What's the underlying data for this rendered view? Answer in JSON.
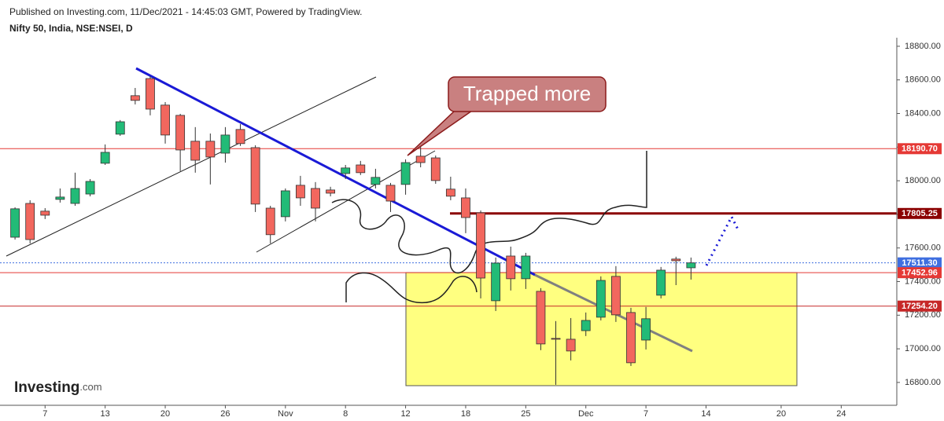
{
  "header": {
    "published": "Published on Investing.com, 11/Dec/2021 - 14:45:03 GMT, Powered by TradingView.",
    "symbol": "Nifty 50, India, NSE:NSEI, D"
  },
  "logo": {
    "name": "Investing",
    "suffix": ".com"
  },
  "chart_data": {
    "type": "candlestick",
    "up_color": "#22bb77",
    "down_color": "#f2675e",
    "xlim": [
      -1,
      58.7
    ],
    "ylim": [
      16664,
      18851
    ],
    "xticks": [
      {
        "value": 2,
        "label": "7"
      },
      {
        "value": 6,
        "label": "13"
      },
      {
        "value": 10,
        "label": "20"
      },
      {
        "value": 14,
        "label": "26"
      },
      {
        "value": 18,
        "label": "Nov"
      },
      {
        "value": 22,
        "label": "8"
      },
      {
        "value": 26,
        "label": "12"
      },
      {
        "value": 30,
        "label": "18"
      },
      {
        "value": 34,
        "label": "25"
      },
      {
        "value": 38,
        "label": "Dec"
      },
      {
        "value": 42,
        "label": "7"
      },
      {
        "value": 46,
        "label": "14"
      },
      {
        "value": 51,
        "label": "20"
      },
      {
        "value": 55,
        "label": "24"
      }
    ],
    "yticks": [
      {
        "value": 16800,
        "label": "16800.00"
      },
      {
        "value": 17000,
        "label": "17000.00"
      },
      {
        "value": 17200,
        "label": "17200.00"
      },
      {
        "value": 17400,
        "label": "17400.00"
      },
      {
        "value": 17600,
        "label": "17600.00"
      },
      {
        "value": 17800,
        "label": "17800.00"
      },
      {
        "value": 18000,
        "label": "18000.00"
      },
      {
        "value": 18200,
        "label": "18200.00"
      },
      {
        "value": 18400,
        "label": "18400.00"
      },
      {
        "value": 18600,
        "label": "18600.00"
      },
      {
        "value": 18800,
        "label": "18800.00"
      }
    ],
    "open": [
      17664,
      17865,
      17819,
      17889,
      17865,
      17921,
      18104,
      18277,
      18506,
      18608,
      18450,
      18389,
      18235,
      18235,
      18164,
      18305,
      18197,
      17837,
      17786,
      17973,
      17954,
      17945,
      18043,
      18094,
      17978,
      17973,
      17978,
      18146,
      18136,
      17950,
      17898,
      17809,
      17286,
      17552,
      17417,
      17342,
      17062,
      17057,
      17108,
      17188,
      17431,
      17216,
      17052,
      17319,
      17534,
      17482
    ],
    "high": [
      17842,
      17884,
      17837,
      17954,
      18048,
      18010,
      18216,
      18361,
      18552,
      18622,
      18468,
      18398,
      18319,
      18281,
      18319,
      18337,
      18211,
      17851,
      17954,
      18029,
      17992,
      17964,
      18094,
      18118,
      18071,
      17987,
      18127,
      18211,
      18150,
      18024,
      17954,
      17823,
      17543,
      17608,
      17571,
      17361,
      17165,
      17183,
      17216,
      17431,
      17492,
      17244,
      17249,
      17487,
      17548,
      17543
    ],
    "low": [
      17650,
      17627,
      17772,
      17870,
      17851,
      17907,
      18094,
      18267,
      18454,
      18389,
      18221,
      18057,
      18048,
      17978,
      18108,
      18207,
      17814,
      17627,
      17758,
      17851,
      17758,
      17907,
      18010,
      18034,
      17954,
      17814,
      17917,
      18080,
      17982,
      17884,
      17688,
      17300,
      17225,
      17347,
      17356,
      16992,
      16786,
      16931,
      17076,
      17169,
      17160,
      16898,
      16996,
      17300,
      17379,
      17412
    ],
    "close": [
      17833,
      17650,
      17795,
      17903,
      17954,
      17996,
      18169,
      18351,
      18478,
      18426,
      18272,
      18183,
      18122,
      18141,
      18272,
      18221,
      17861,
      17679,
      17940,
      17898,
      17837,
      17926,
      18076,
      18048,
      18020,
      17879,
      18108,
      18108,
      18001,
      17908,
      17781,
      17421,
      17510,
      17417,
      17552,
      17029,
      17057,
      16987,
      17169,
      17407,
      17202,
      16917,
      17179,
      17468,
      17524,
      17511.3
    ],
    "levels": [
      {
        "value": 18190.7,
        "label": "18190.70",
        "color": "#e53935",
        "line_width": 1
      },
      {
        "value": 17805.25,
        "label": "17805.25",
        "color": "#8b0000",
        "line_width": 3
      },
      {
        "value": 17511.3,
        "label": "17511.30",
        "color": "#3f6fe0",
        "line_width": 1
      },
      {
        "value": 17452.96,
        "label": "17452.96",
        "color": "#e53935",
        "line_width": 1
      },
      {
        "value": 17254.2,
        "label": "17254.20",
        "color": "#c62828",
        "line_width": 1
      }
    ],
    "annotation": "Trapped more"
  }
}
